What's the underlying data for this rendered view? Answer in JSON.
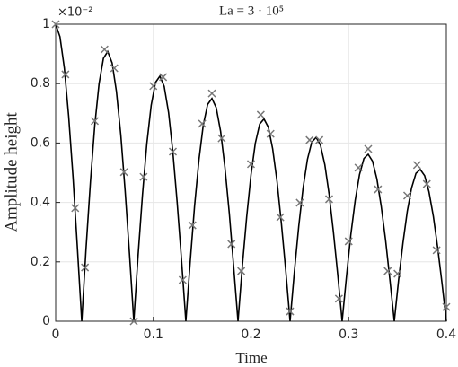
{
  "chart_data": {
    "type": "line",
    "title": "La = 3 · 10⁵",
    "axis_multiplier": "×10⁻²",
    "xlabel": "Time",
    "ylabel": "Amplitude height",
    "xlim": [
      0,
      0.4
    ],
    "ylim": [
      0,
      1
    ],
    "xticks": [
      0,
      0.1,
      0.2,
      0.3,
      0.4
    ],
    "yticks": [
      0,
      0.2,
      0.4,
      0.6,
      0.8,
      1
    ],
    "grid": true,
    "series": [
      {
        "style": "line",
        "color": "#000000",
        "x": [
          0,
          0.0044,
          0.0089,
          0.0133,
          0.0178,
          0.0222,
          0.0267,
          0.0311,
          0.0356,
          0.04,
          0.0444,
          0.0489,
          0.0533,
          0.0578,
          0.0622,
          0.0667,
          0.0711,
          0.0756,
          0.08,
          0.0844,
          0.0889,
          0.0933,
          0.0978,
          0.1022,
          0.1067,
          0.1111,
          0.1156,
          0.12,
          0.1244,
          0.1289,
          0.1333,
          0.1378,
          0.1422,
          0.1467,
          0.1511,
          0.1556,
          0.16,
          0.1644,
          0.1689,
          0.1733,
          0.1778,
          0.1822,
          0.1867,
          0.1911,
          0.1956,
          0.2,
          0.2044,
          0.2089,
          0.2133,
          0.2178,
          0.2222,
          0.2267,
          0.2311,
          0.2356,
          0.24,
          0.2444,
          0.2489,
          0.2533,
          0.2578,
          0.2622,
          0.2667,
          0.2711,
          0.2756,
          0.28,
          0.2844,
          0.2889,
          0.2933,
          0.2978,
          0.3022,
          0.3067,
          0.3111,
          0.3156,
          0.32,
          0.3244,
          0.3289,
          0.3333,
          0.3378,
          0.3422,
          0.3467,
          0.3511,
          0.3556,
          0.36,
          0.3644,
          0.3689,
          0.3733,
          0.3778,
          0.3822,
          0.3867,
          0.3911,
          0.3956,
          0.4
        ],
        "values": [
          1,
          0.958,
          0.852,
          0.69,
          0.484,
          0.249,
          0,
          0.245,
          0.469,
          0.658,
          0.799,
          0.885,
          0.908,
          0.87,
          0.774,
          0.627,
          0.44,
          0.226,
          0,
          0.222,
          0.426,
          0.597,
          0.727,
          0.804,
          0.825,
          0.791,
          0.703,
          0.57,
          0.4,
          0.205,
          0,
          0.202,
          0.387,
          0.543,
          0.66,
          0.73,
          0.75,
          0.719,
          0.639,
          0.518,
          0.363,
          0.186,
          0,
          0.184,
          0.352,
          0.493,
          0.599,
          0.664,
          0.681,
          0.653,
          0.58,
          0.47,
          0.33,
          0.17,
          0,
          0.166,
          0.32,
          0.448,
          0.545,
          0.603,
          0.619,
          0.593,
          0.527,
          0.427,
          0.3,
          0.154,
          0,
          0.152,
          0.291,
          0.407,
          0.494,
          0.548,
          0.562,
          0.539,
          0.479,
          0.388,
          0.273,
          0.14,
          0,
          0.138,
          0.264,
          0.37,
          0.449,
          0.498,
          0.511,
          0.49,
          0.436,
          0.353,
          0.248,
          0.127,
          0
        ]
      },
      {
        "style": "markers",
        "marker": "x",
        "color": "#777777",
        "x": [
          0,
          0.01,
          0.02,
          0.03,
          0.04,
          0.05,
          0.06,
          0.07,
          0.08,
          0.09,
          0.1,
          0.11,
          0.12,
          0.13,
          0.14,
          0.15,
          0.16,
          0.17,
          0.18,
          0.19,
          0.2,
          0.21,
          0.22,
          0.23,
          0.24,
          0.25,
          0.26,
          0.27,
          0.28,
          0.29,
          0.3,
          0.31,
          0.32,
          0.33,
          0.34,
          0.35,
          0.36,
          0.37,
          0.38,
          0.39,
          0.4
        ],
        "values": [
          1,
          0.831,
          0.381,
          0.181,
          0.674,
          0.915,
          0.852,
          0.502,
          0,
          0.486,
          0.792,
          0.822,
          0.571,
          0.139,
          0.323,
          0.665,
          0.767,
          0.616,
          0.26,
          0.169,
          0.529,
          0.695,
          0.631,
          0.35,
          0.033,
          0.399,
          0.61,
          0.61,
          0.411,
          0.076,
          0.269,
          0.517,
          0.58,
          0.444,
          0.169,
          0.16,
          0.423,
          0.526,
          0.462,
          0.239,
          0.048
        ]
      }
    ]
  }
}
